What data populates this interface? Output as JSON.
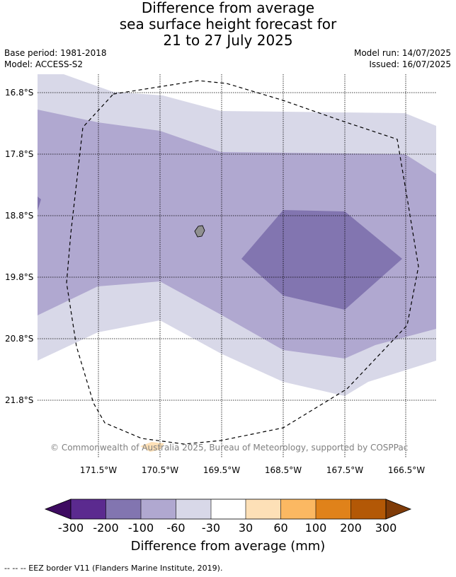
{
  "title": {
    "line1": "Difference from average",
    "line2": "sea surface height forecast for",
    "line3": "21 to 27 July 2025"
  },
  "meta": {
    "base_period": "Base period: 1981-2018",
    "model": "Model: ACCESS-S2",
    "model_run": "Model run: 14/07/2025",
    "issued": "Issued: 16/07/2025"
  },
  "map": {
    "latitude_labels": [
      "16.8°S",
      "17.8°S",
      "18.8°S",
      "19.8°S",
      "20.8°S",
      "21.8°S"
    ],
    "longitude_labels": [
      "171.5°W",
      "170.5°W",
      "169.5°W",
      "168.5°W",
      "167.5°W",
      "166.5°W"
    ],
    "copyright": "© Commonwealth of Australia 2025, Bureau of Meteorology, supported by COSPPac",
    "colors": {
      "band_minus_60_to_minus_30": "#d8d8e8",
      "band_minus_100_to_minus_60": "#b0a8d0",
      "band_minus_200_to_minus_100": "#8275b0",
      "band_30_to_60": "#fde0b7",
      "land": "#909090"
    }
  },
  "colorbar": {
    "title": "Difference from average (mm)",
    "ticks": [
      "-300",
      "-200",
      "-100",
      "-60",
      "-30",
      "30",
      "60",
      "100",
      "200",
      "300"
    ],
    "colors": [
      "#3e0b61",
      "#5b2a8f",
      "#8275b0",
      "#b0a8d0",
      "#d8d8e8",
      "#ffffff",
      "#fde0b7",
      "#fbb862",
      "#e0821a",
      "#b35806",
      "#7f3b08"
    ]
  },
  "footer": "--  --  -- EEZ border V11 (Flanders Marine Institute, 2019)."
}
